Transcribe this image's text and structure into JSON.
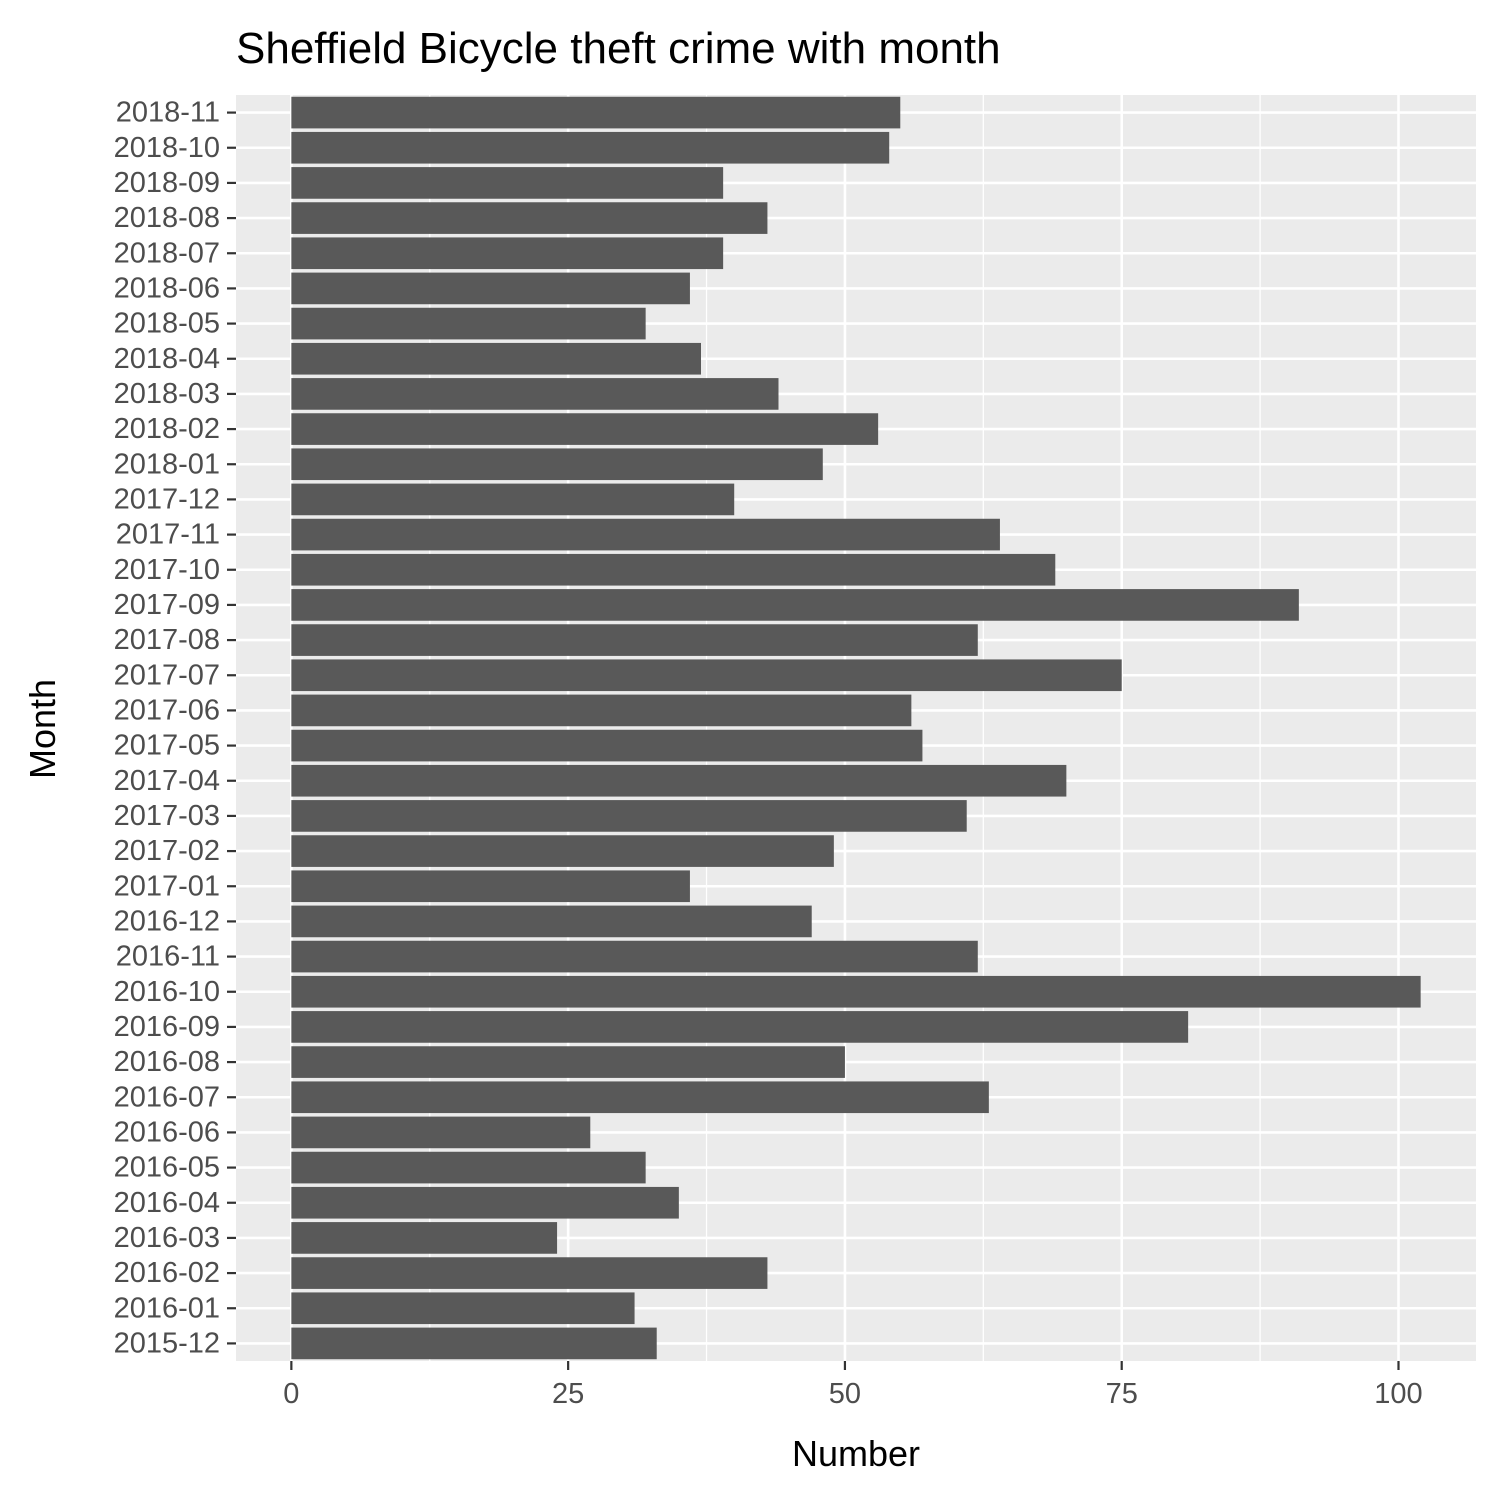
{
  "chart_data": {
    "type": "bar",
    "orientation": "horizontal",
    "title": "Sheffield Bicycle theft crime with month",
    "xlabel": "Number",
    "ylabel": "Month",
    "xlim": [
      -5,
      107
    ],
    "x_ticks": [
      0,
      25,
      50,
      75,
      100
    ],
    "grid": true,
    "categories": [
      "2015-12",
      "2016-01",
      "2016-02",
      "2016-03",
      "2016-04",
      "2016-05",
      "2016-06",
      "2016-07",
      "2016-08",
      "2016-09",
      "2016-10",
      "2016-11",
      "2016-12",
      "2017-01",
      "2017-02",
      "2017-03",
      "2017-04",
      "2017-05",
      "2017-06",
      "2017-07",
      "2017-08",
      "2017-09",
      "2017-10",
      "2017-11",
      "2017-12",
      "2018-01",
      "2018-02",
      "2018-03",
      "2018-04",
      "2018-05",
      "2018-06",
      "2018-07",
      "2018-08",
      "2018-09",
      "2018-10",
      "2018-11"
    ],
    "values": [
      33,
      31,
      43,
      24,
      35,
      32,
      27,
      63,
      50,
      81,
      102,
      62,
      47,
      36,
      49,
      61,
      70,
      57,
      56,
      75,
      62,
      91,
      69,
      64,
      40,
      48,
      53,
      44,
      37,
      32,
      36,
      39,
      43,
      39,
      54,
      55
    ],
    "colors": {
      "bar": "#595959",
      "panel": "#ebebeb",
      "grid": "#ffffff",
      "tick_text": "#4d4d4d",
      "tick_mark": "#333333"
    }
  }
}
